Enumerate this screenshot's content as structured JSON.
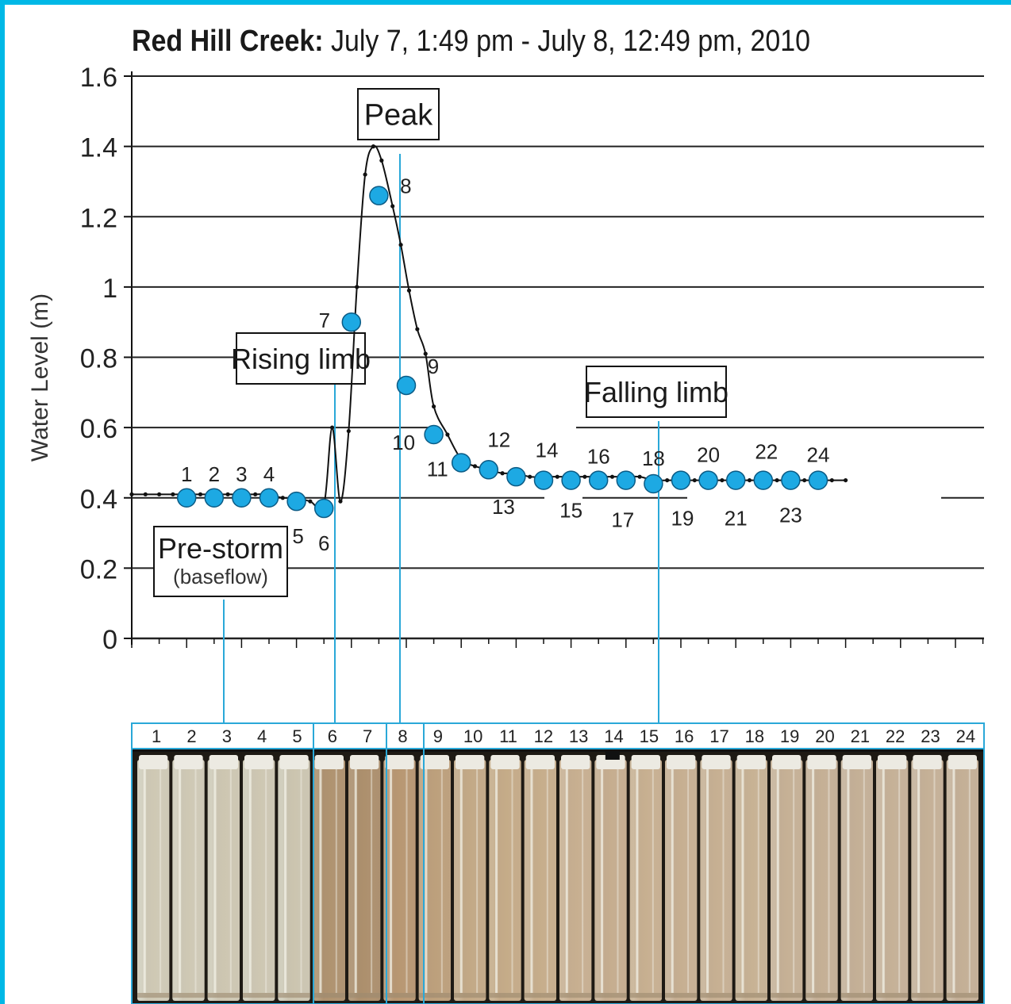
{
  "chart_data": {
    "type": "line",
    "title_bold": "Red Hill Creek:",
    "title_rest": " July 7, 1:49 pm - July 8, 12:49 pm, 2010",
    "xlabel": "",
    "ylabel": "Water Level (m)",
    "ylim": [
      0,
      1.6
    ],
    "yticks": [
      "1.6",
      "1.4",
      "1.2",
      "1",
      "0.8",
      "0.6",
      "0.4",
      "0.2",
      "0"
    ],
    "ytick_values": [
      1.6,
      1.4,
      1.2,
      1.0,
      0.8,
      0.6,
      0.4,
      0.2,
      0
    ],
    "grid": true,
    "sample_points": [
      {
        "label": "1",
        "x": 2,
        "y": 0.4
      },
      {
        "label": "2",
        "x": 3,
        "y": 0.4
      },
      {
        "label": "3",
        "x": 4,
        "y": 0.4
      },
      {
        "label": "4",
        "x": 5,
        "y": 0.4
      },
      {
        "label": "5",
        "x": 6,
        "y": 0.39
      },
      {
        "label": "6",
        "x": 7,
        "y": 0.37
      },
      {
        "label": "7",
        "x": 8,
        "y": 0.9
      },
      {
        "label": "8",
        "x": 9,
        "y": 1.26
      },
      {
        "label": "9",
        "x": 10,
        "y": 0.72
      },
      {
        "label": "10",
        "x": 11,
        "y": 0.58
      },
      {
        "label": "11",
        "x": 12,
        "y": 0.5
      },
      {
        "label": "12",
        "x": 13,
        "y": 0.48
      },
      {
        "label": "13",
        "x": 14,
        "y": 0.46
      },
      {
        "label": "14",
        "x": 15,
        "y": 0.45
      },
      {
        "label": "15",
        "x": 16,
        "y": 0.45
      },
      {
        "label": "16",
        "x": 17,
        "y": 0.45
      },
      {
        "label": "17",
        "x": 18,
        "y": 0.45
      },
      {
        "label": "18",
        "x": 19,
        "y": 0.44
      },
      {
        "label": "19",
        "x": 20,
        "y": 0.45
      },
      {
        "label": "20",
        "x": 21,
        "y": 0.45
      },
      {
        "label": "21",
        "x": 22,
        "y": 0.45
      },
      {
        "label": "22",
        "x": 23,
        "y": 0.45
      },
      {
        "label": "23",
        "x": 24,
        "y": 0.45
      },
      {
        "label": "24",
        "x": 25,
        "y": 0.45
      }
    ],
    "trace": [
      [
        0,
        0.41
      ],
      [
        0.5,
        0.41
      ],
      [
        1,
        0.41
      ],
      [
        1.5,
        0.41
      ],
      [
        2,
        0.41
      ],
      [
        2.5,
        0.41
      ],
      [
        3,
        0.41
      ],
      [
        3.5,
        0.41
      ],
      [
        4,
        0.41
      ],
      [
        4.5,
        0.41
      ],
      [
        5,
        0.41
      ],
      [
        5.5,
        0.4
      ],
      [
        6,
        0.4
      ],
      [
        6.5,
        0.39
      ],
      [
        7,
        0.38
      ],
      [
        7.3,
        0.6
      ],
      [
        7.6,
        0.39
      ],
      [
        7.9,
        0.59
      ],
      [
        8.2,
        1.0
      ],
      [
        8.5,
        1.32
      ],
      [
        8.8,
        1.4
      ],
      [
        9.1,
        1.36
      ],
      [
        9.5,
        1.23
      ],
      [
        9.8,
        1.12
      ],
      [
        10.1,
        0.99
      ],
      [
        10.4,
        0.88
      ],
      [
        10.7,
        0.81
      ],
      [
        11,
        0.66
      ],
      [
        11.5,
        0.58
      ],
      [
        12,
        0.51
      ],
      [
        12.5,
        0.49
      ],
      [
        13,
        0.48
      ],
      [
        13.5,
        0.47
      ],
      [
        14,
        0.47
      ],
      [
        14.5,
        0.46
      ],
      [
        15,
        0.46
      ],
      [
        15.5,
        0.46
      ],
      [
        16,
        0.46
      ],
      [
        16.5,
        0.46
      ],
      [
        17,
        0.46
      ],
      [
        17.5,
        0.46
      ],
      [
        18,
        0.46
      ],
      [
        18.5,
        0.46
      ],
      [
        19,
        0.45
      ],
      [
        19.5,
        0.45
      ],
      [
        20,
        0.45
      ],
      [
        20.5,
        0.45
      ],
      [
        21,
        0.45
      ],
      [
        21.5,
        0.45
      ],
      [
        22,
        0.45
      ],
      [
        22.5,
        0.45
      ],
      [
        23,
        0.45
      ],
      [
        23.5,
        0.45
      ],
      [
        24,
        0.45
      ],
      [
        24.5,
        0.45
      ],
      [
        25,
        0.45
      ],
      [
        25.5,
        0.45
      ],
      [
        26,
        0.45
      ]
    ],
    "annotations": {
      "peak": "Peak",
      "rising": "Rising limb",
      "falling": "Falling limb",
      "prestorm": "Pre-storm",
      "prestorm_sub": "(baseflow)"
    },
    "bottle_labels": [
      "1",
      "2",
      "3",
      "4",
      "5",
      "6",
      "7",
      "8",
      "9",
      "10",
      "11",
      "12",
      "13",
      "14",
      "15",
      "16",
      "17",
      "18",
      "19",
      "20",
      "21",
      "22",
      "23",
      "24"
    ],
    "colors": {
      "marker": "#1da9e3",
      "line": "#111111",
      "leader": "#2aa8d8",
      "frame": "#00b8e6"
    }
  }
}
